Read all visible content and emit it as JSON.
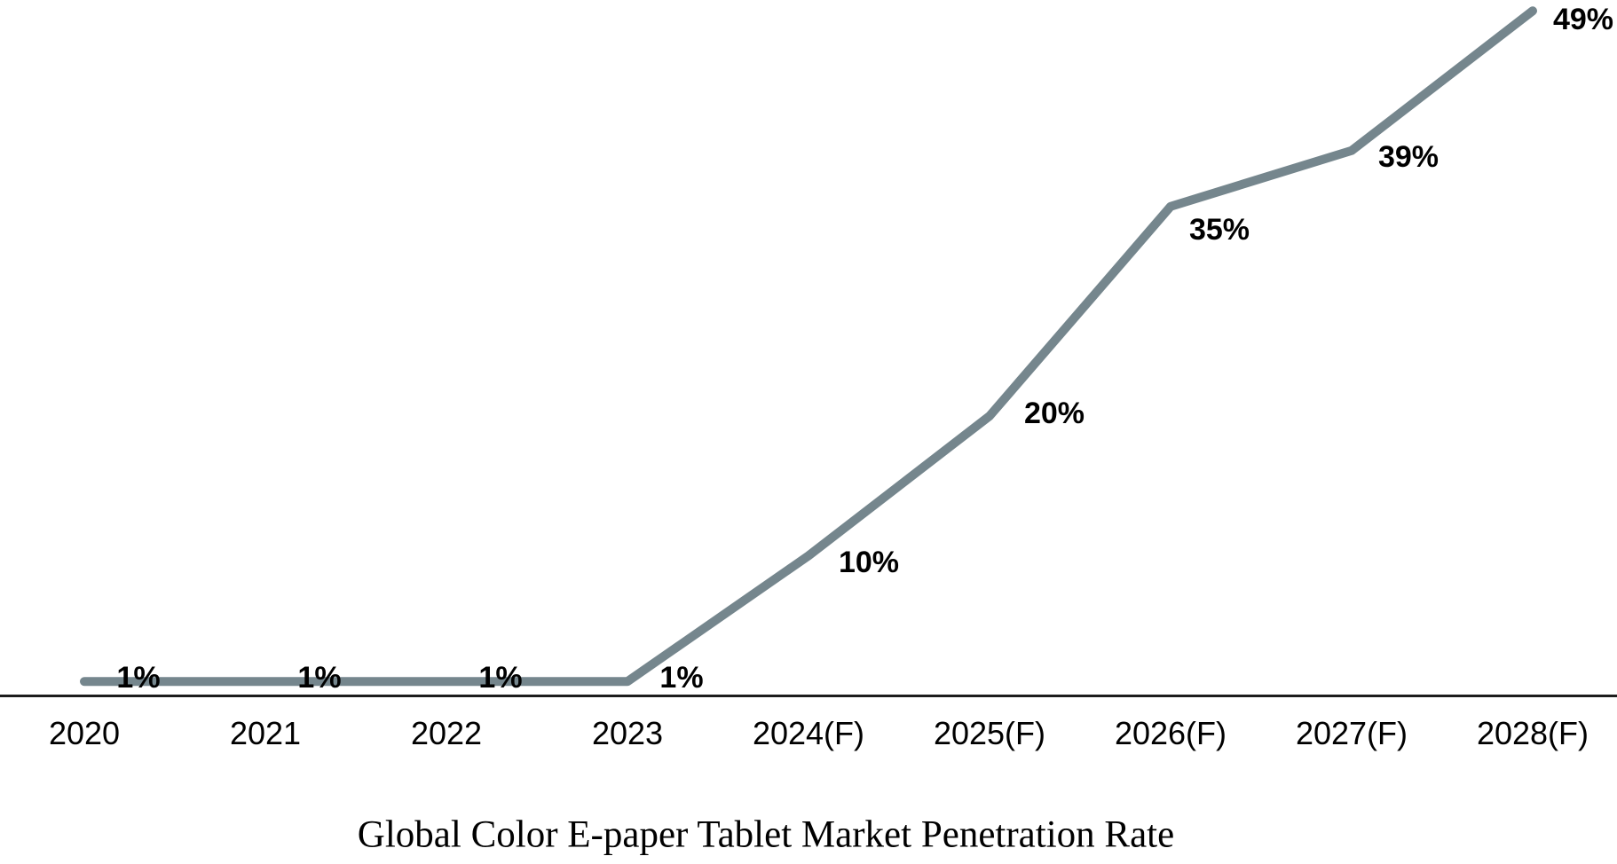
{
  "chart_data": {
    "type": "line",
    "title": "Global Color E-paper Tablet Market Penetration Rate",
    "categories": [
      "2020",
      "2021",
      "2022",
      "2023",
      "2024(F)",
      "2025(F)",
      "2026(F)",
      "2027(F)",
      "2028(F)"
    ],
    "series": [
      {
        "name": "Market Penetration Rate",
        "values": [
          1,
          1,
          1,
          1,
          10,
          20,
          35,
          39,
          49
        ]
      }
    ],
    "point_labels": [
      "1%",
      "1%",
      "1%",
      "1%",
      "10%",
      "20%",
      "35%",
      "39%",
      "49%"
    ],
    "unit": "%",
    "xlabel": "",
    "ylabel": "",
    "ylim": [
      0,
      50
    ],
    "grid": false,
    "legend_position": "none",
    "y_axis_visible": false,
    "x_axis_visible": true,
    "line_color": "#75868d",
    "axis_color": "#1d1d1d",
    "label_color": "#000000"
  }
}
